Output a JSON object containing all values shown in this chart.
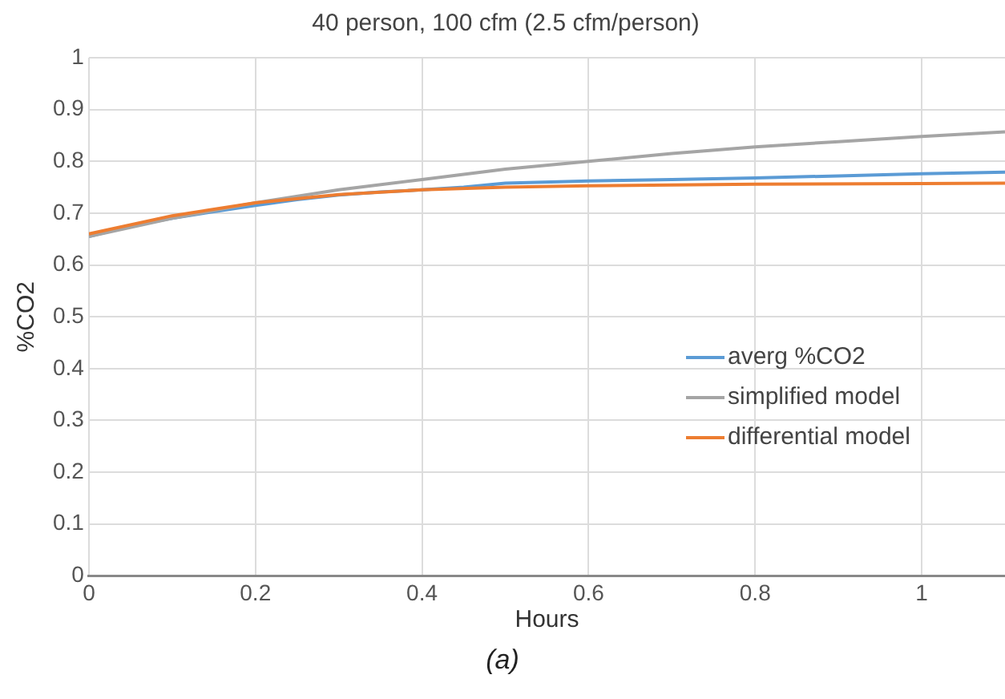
{
  "chart_data": {
    "type": "line",
    "title": "40 person, 100 cfm (2.5 cfm/person)",
    "xlabel": "Hours",
    "ylabel": "%CO2",
    "annotations": [
      "(a)"
    ],
    "series": [
      {
        "name": "averg %CO2",
        "color": "#5b9bd5",
        "x": [
          0,
          0.05,
          0.1,
          0.15,
          0.2,
          0.25,
          0.3,
          0.35,
          0.4,
          0.45,
          0.5,
          0.6,
          0.7,
          0.8,
          0.9,
          1.0,
          1.1
        ],
        "values": [
          0.655,
          0.675,
          0.69,
          0.703,
          0.715,
          0.726,
          0.735,
          0.741,
          0.745,
          0.75,
          0.758,
          0.762,
          0.765,
          0.768,
          0.772,
          0.776,
          0.779
        ]
      },
      {
        "name": "simplified model",
        "color": "#a5a5a5",
        "x": [
          0,
          0.1,
          0.2,
          0.3,
          0.4,
          0.5,
          0.6,
          0.7,
          0.8,
          0.9,
          1.0,
          1.1
        ],
        "values": [
          0.655,
          0.69,
          0.72,
          0.745,
          0.765,
          0.785,
          0.8,
          0.815,
          0.828,
          0.838,
          0.848,
          0.857
        ]
      },
      {
        "name": "differential model",
        "color": "#ed7d31",
        "x": [
          0,
          0.1,
          0.2,
          0.3,
          0.4,
          0.5,
          0.6,
          0.8,
          1.0,
          1.1
        ],
        "values": [
          0.66,
          0.695,
          0.72,
          0.736,
          0.745,
          0.75,
          0.753,
          0.756,
          0.757,
          0.758
        ]
      }
    ],
    "xlim": [
      0,
      1.1
    ],
    "xticks": [
      0,
      0.2,
      0.4,
      0.6,
      0.8,
      1
    ],
    "ylim": [
      0,
      1
    ],
    "yticks": [
      0,
      0.1,
      0.2,
      0.3,
      0.4,
      0.5,
      0.6,
      0.7,
      0.8,
      0.9,
      1
    ],
    "grid": true,
    "legend": "right",
    "marker": "none",
    "line_style": "solid"
  }
}
